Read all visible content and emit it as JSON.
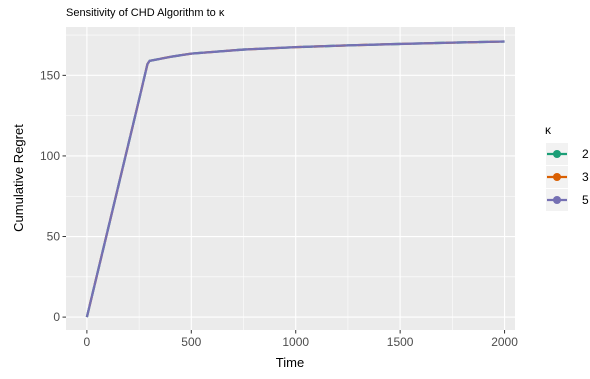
{
  "chart_data": {
    "type": "line",
    "title": "Sensitivity of CHD Algorithm to κ",
    "xlabel": "Time",
    "ylabel": "Cumulative Regret",
    "xlim": [
      -100,
      2050
    ],
    "ylim": [
      -8,
      180
    ],
    "x_ticks": [
      0,
      500,
      1000,
      1500,
      2000
    ],
    "y_ticks": [
      0,
      50,
      100,
      150
    ],
    "grid": true,
    "background": "#ebebeb",
    "legend": {
      "title": "κ",
      "position": "right"
    },
    "series": [
      {
        "name": "2",
        "color": "#1b9e77",
        "dash": "10,12",
        "dash_offset": 0,
        "x": [
          0,
          50,
          100,
          150,
          200,
          250,
          290,
          300,
          400,
          500,
          750,
          1000,
          1250,
          1500,
          1750,
          2000
        ],
        "y": [
          0,
          27,
          54,
          81,
          108,
          135,
          157,
          159,
          161.5,
          163.5,
          166,
          167.5,
          168.6,
          169.5,
          170.3,
          171
        ]
      },
      {
        "name": "3",
        "color": "#d95f02",
        "dash": "10,12",
        "dash_offset": 11,
        "x": [
          0,
          50,
          100,
          150,
          200,
          250,
          290,
          300,
          400,
          500,
          750,
          1000,
          1250,
          1500,
          1750,
          2000
        ],
        "y": [
          0,
          27,
          54,
          81,
          108,
          135,
          157,
          159,
          161.5,
          163.5,
          166,
          167.5,
          168.6,
          169.5,
          170.3,
          171
        ]
      },
      {
        "name": "5",
        "color": "#7570b3",
        "dash": "",
        "dash_offset": 0,
        "x": [
          0,
          50,
          100,
          150,
          200,
          250,
          290,
          300,
          400,
          500,
          750,
          1000,
          1250,
          1500,
          1750,
          2000
        ],
        "y": [
          0,
          27,
          54,
          81,
          108,
          135,
          157,
          159,
          161.5,
          163.5,
          166,
          167.5,
          168.6,
          169.5,
          170.3,
          171
        ]
      }
    ]
  }
}
